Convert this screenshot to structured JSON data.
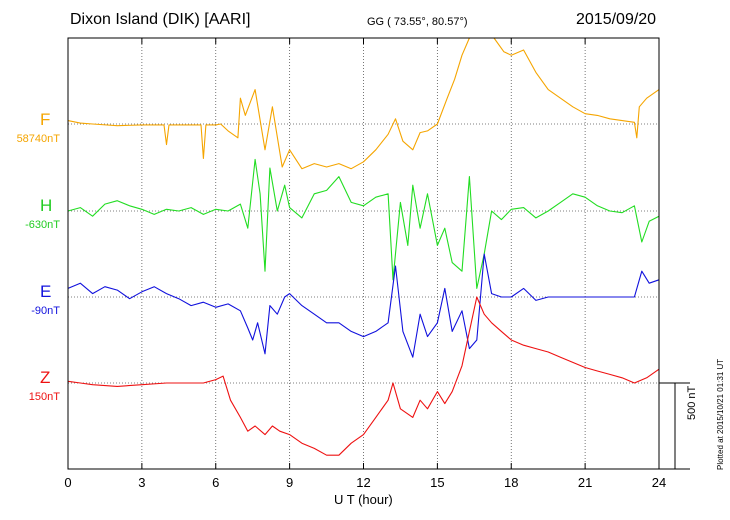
{
  "header": {
    "station": "Dixon Island (DIK)  [AARI]",
    "coords": "GG ( 73.55°,  80.57°)",
    "date": "2015/09/20"
  },
  "xlabel": "U T (hour)",
  "scale_label": "500 nT",
  "plotted": "Plotted at 2015/10/21 01:31  UT",
  "chart_data": {
    "type": "line",
    "title": "Dixon Island (DIK)  [AARI]",
    "xlabel": "U T (hour)",
    "ylabel": "",
    "xlim": [
      0,
      24
    ],
    "x_ticks": [
      "0",
      "3",
      "6",
      "9",
      "12",
      "15",
      "18",
      "21",
      "24"
    ],
    "grid": true,
    "scale_bar": "500 nT",
    "series": [
      {
        "name": "F",
        "baseline_label": "58740nT",
        "color": "#f5a500",
        "x": [
          0,
          0.5,
          1,
          2,
          3,
          3.9,
          4.0,
          4.1,
          5,
          5.4,
          5.5,
          5.6,
          6,
          6.2,
          6.5,
          6.9,
          7.0,
          7.2,
          7.6,
          8.0,
          8.3,
          8.7,
          9,
          9.5,
          10,
          10.5,
          11,
          11.5,
          12,
          12.5,
          13,
          13.3,
          13.6,
          14,
          14.3,
          14.6,
          15,
          15.4,
          15.7,
          16.0,
          16.3,
          16.6,
          16.8,
          17.0,
          17.3,
          17.7,
          18,
          18.5,
          19,
          19.5,
          20,
          20.5,
          21,
          21.5,
          22,
          22.5,
          23,
          23.1,
          23.2,
          23.5,
          24
        ],
        "values": [
          20,
          5,
          0,
          -10,
          -5,
          -5,
          -120,
          -5,
          -5,
          -5,
          -200,
          -5,
          -5,
          0,
          -40,
          -80,
          150,
          50,
          200,
          -150,
          100,
          -250,
          -150,
          -260,
          -230,
          -250,
          -230,
          -260,
          -220,
          -150,
          -60,
          30,
          -100,
          -150,
          -50,
          -40,
          0,
          150,
          260,
          400,
          500,
          580,
          800,
          600,
          500,
          420,
          400,
          430,
          300,
          200,
          150,
          100,
          60,
          50,
          30,
          20,
          10,
          -80,
          100,
          150,
          200
        ]
      },
      {
        "name": "H",
        "baseline_label": "-630nT",
        "color": "#22dd22",
        "x": [
          0,
          0.5,
          1,
          1.5,
          2,
          2.5,
          3,
          3.5,
          4,
          4.5,
          5,
          5.5,
          6,
          6.5,
          7,
          7.3,
          7.6,
          7.8,
          8.0,
          8.2,
          8.5,
          8.8,
          9,
          9.5,
          10,
          10.5,
          11,
          11.5,
          12,
          12.5,
          13,
          13.2,
          13.5,
          13.8,
          14,
          14.3,
          14.6,
          15,
          15.3,
          15.6,
          16.0,
          16.3,
          16.6,
          16.9,
          17.2,
          17.6,
          18,
          18.5,
          19,
          19.5,
          20,
          20.5,
          21,
          21.5,
          22,
          22.5,
          23,
          23.3,
          23.6,
          24
        ],
        "values": [
          0,
          20,
          -30,
          40,
          60,
          30,
          10,
          -20,
          10,
          0,
          20,
          -20,
          10,
          0,
          40,
          -100,
          300,
          100,
          -350,
          250,
          0,
          150,
          20,
          -40,
          100,
          120,
          200,
          50,
          30,
          80,
          100,
          -400,
          50,
          -200,
          150,
          -100,
          100,
          -200,
          -100,
          -300,
          -350,
          200,
          -450,
          -250,
          0,
          -50,
          10,
          20,
          -40,
          0,
          50,
          100,
          80,
          30,
          0,
          -10,
          30,
          -180,
          -60,
          -30
        ]
      },
      {
        "name": "E",
        "baseline_label": "-90nT",
        "color": "#1111dd",
        "x": [
          0,
          0.5,
          1,
          1.5,
          2,
          2.5,
          3,
          3.5,
          4,
          4.5,
          5,
          5.5,
          6,
          6.5,
          7,
          7.3,
          7.5,
          7.7,
          8.0,
          8.2,
          8.5,
          8.8,
          9,
          9.5,
          10,
          10.5,
          11,
          11.5,
          12,
          12.5,
          13,
          13.3,
          13.6,
          14,
          14.3,
          14.6,
          15,
          15.3,
          15.6,
          16.0,
          16.3,
          16.6,
          16.9,
          17.2,
          17.6,
          18,
          18.5,
          19,
          19.5,
          20,
          20.5,
          21,
          21.5,
          22,
          22.5,
          23,
          23.3,
          23.6,
          24
        ],
        "values": [
          50,
          80,
          20,
          60,
          40,
          -10,
          30,
          60,
          20,
          -10,
          -50,
          -30,
          -60,
          -40,
          -80,
          -180,
          -250,
          -150,
          -330,
          -50,
          -100,
          0,
          20,
          -50,
          -100,
          -150,
          -150,
          -200,
          -230,
          -200,
          -150,
          180,
          -200,
          -350,
          -100,
          -230,
          -150,
          50,
          -200,
          -80,
          -300,
          -250,
          250,
          20,
          0,
          0,
          50,
          -20,
          0,
          0,
          0,
          0,
          0,
          0,
          0,
          0,
          150,
          80,
          100
        ]
      },
      {
        "name": "Z",
        "baseline_label": "150nT",
        "color": "#ee1111",
        "x": [
          0,
          0.5,
          1,
          2,
          3,
          4,
          5,
          5.5,
          6,
          6.3,
          6.6,
          7.0,
          7.3,
          7.6,
          8.0,
          8.3,
          8.6,
          9,
          9.5,
          10,
          10.5,
          11,
          11.5,
          12,
          12.5,
          13,
          13.2,
          13.5,
          14,
          14.3,
          14.6,
          15,
          15.3,
          15.6,
          16.0,
          16.3,
          16.6,
          16.9,
          17.2,
          17.6,
          18,
          18.5,
          19,
          19.5,
          20,
          20.5,
          21,
          21.5,
          22,
          22.5,
          23,
          23.5,
          24
        ],
        "values": [
          10,
          0,
          -10,
          -20,
          -10,
          0,
          0,
          0,
          20,
          40,
          -100,
          -200,
          -280,
          -250,
          -300,
          -250,
          -280,
          -300,
          -350,
          -380,
          -420,
          -420,
          -350,
          -300,
          -200,
          -100,
          0,
          -150,
          -200,
          -100,
          -150,
          -50,
          -120,
          -50,
          100,
          300,
          500,
          400,
          350,
          300,
          250,
          220,
          200,
          180,
          150,
          120,
          90,
          70,
          50,
          30,
          0,
          30,
          80
        ]
      }
    ]
  }
}
